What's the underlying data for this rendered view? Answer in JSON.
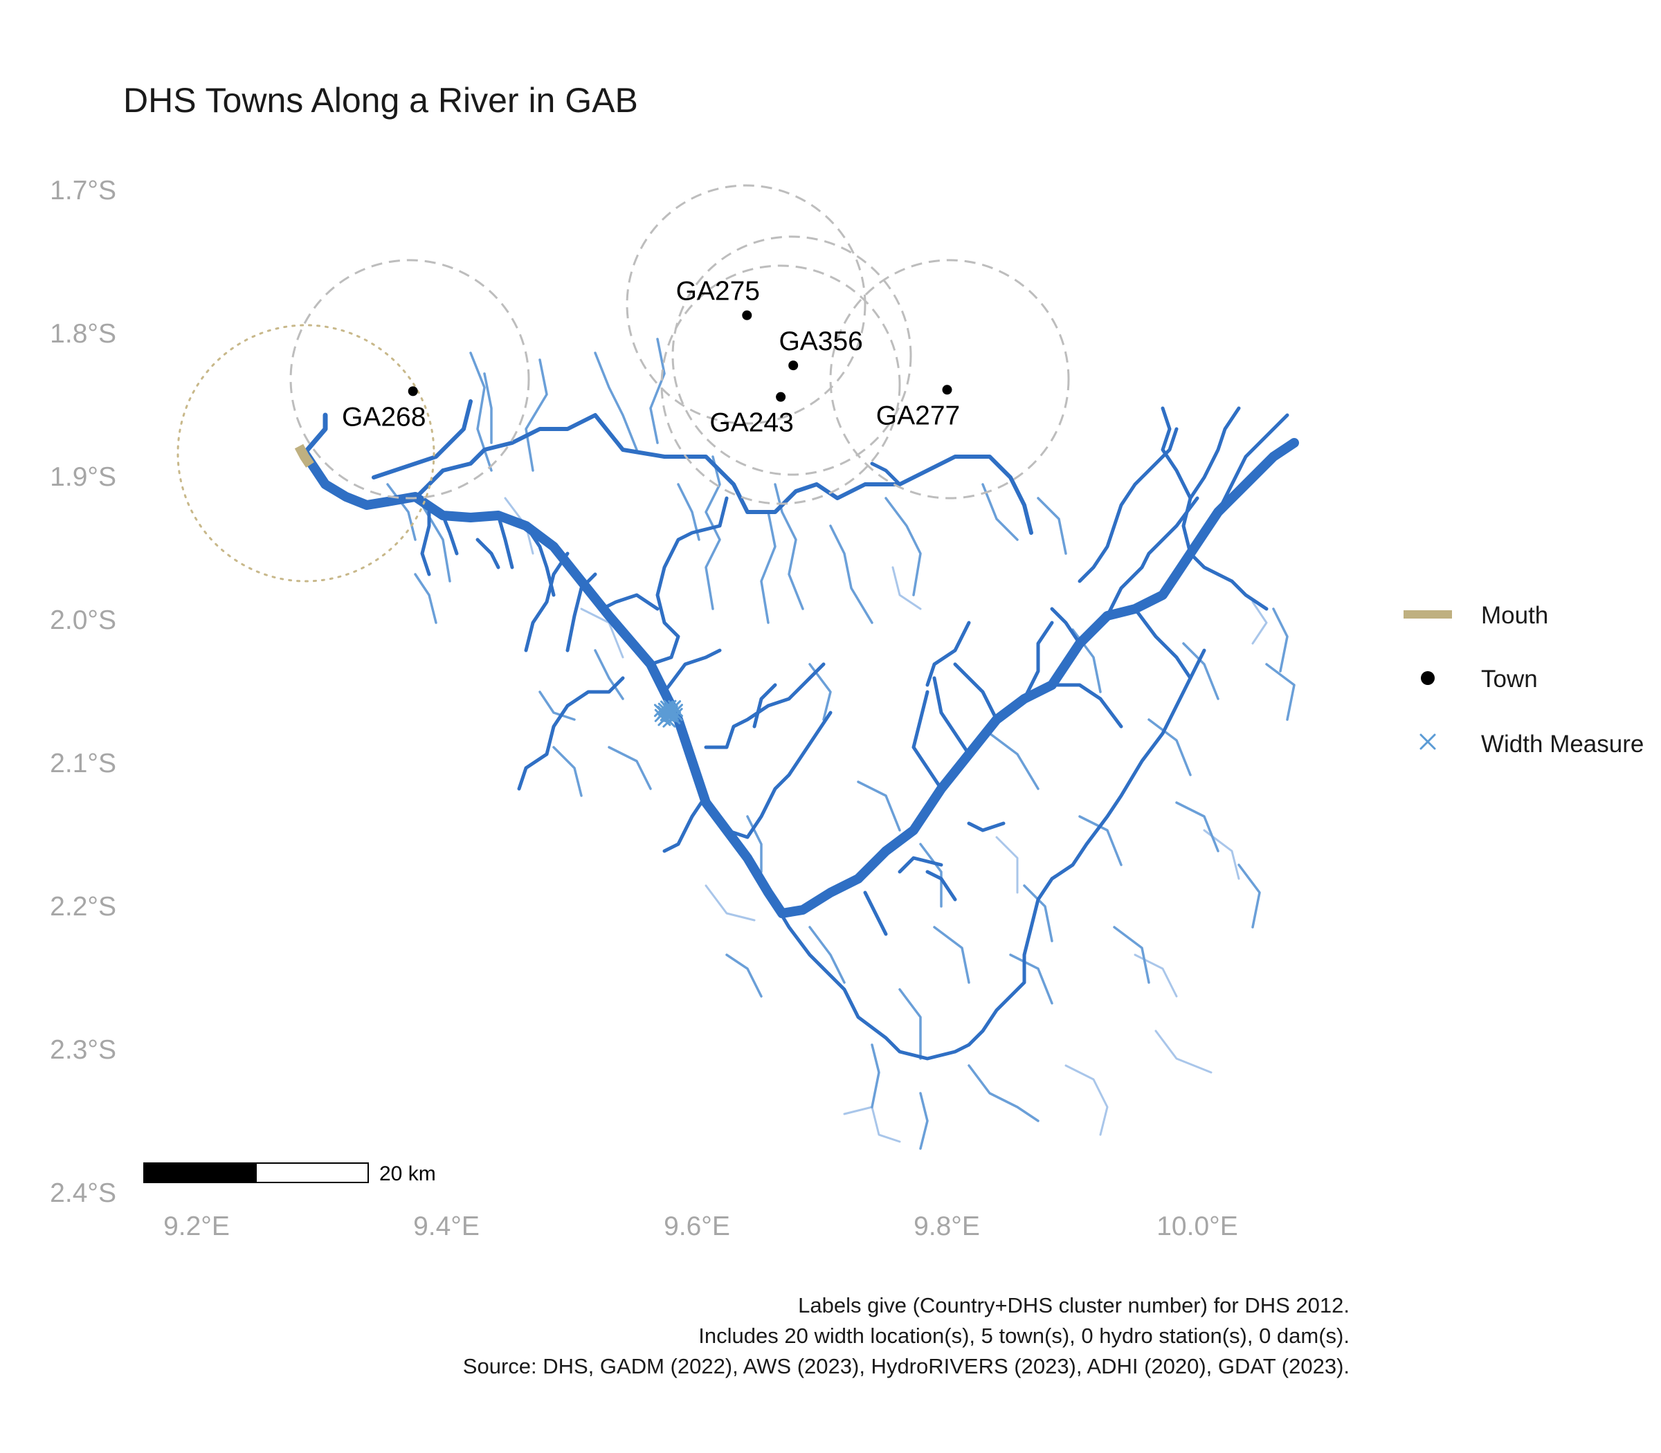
{
  "title": "DHS Towns Along a River in GAB",
  "axes": {
    "y_ticks": [
      "1.7°S",
      "1.8°S",
      "1.9°S",
      "2.0°S",
      "2.1°S",
      "2.2°S",
      "2.3°S",
      "2.4°S"
    ],
    "x_ticks": [
      "9.2°E",
      "9.4°E",
      "9.6°E",
      "9.8°E",
      "10.0°E"
    ],
    "lon_range": [
      9.15,
      10.08
    ],
    "lat_range": [
      -2.4,
      -1.7
    ]
  },
  "towns": [
    {
      "label": "GA268",
      "lon": 9.373,
      "lat": -1.834
    },
    {
      "label": "GA275",
      "lon": 9.64,
      "lat": -1.781
    },
    {
      "label": "GA356",
      "lon": 9.677,
      "lat": -1.816
    },
    {
      "label": "GA243",
      "lon": 9.667,
      "lat": -1.838
    },
    {
      "label": "GA277",
      "lon": 9.8,
      "lat": -1.833
    }
  ],
  "mouth": {
    "lon": 9.29,
    "lat": -1.885,
    "color": "#bfb080"
  },
  "width_measure": {
    "lon": 9.578,
    "lat": -2.058,
    "count": 20,
    "color": "#5b9bd5"
  },
  "legend": {
    "items": [
      {
        "label": "Mouth",
        "symbol": "line",
        "color": "#bfb080"
      },
      {
        "label": "Town",
        "symbol": "dot",
        "color": "#000000"
      },
      {
        "label": "Width Measure",
        "symbol": "cross",
        "color": "#5b9bd5"
      }
    ]
  },
  "scale_bar": {
    "label": "20 km"
  },
  "caption": {
    "line1": "Labels give (Country+DHS cluster number) for DHS 2012.",
    "line2": "Includes 20 width location(s), 5 town(s), 0 hydro station(s), 0 dam(s).",
    "line3": "Source: DHS, GADM (2022), AWS (2023), HydroRIVERS (2023), ADHI (2020), GDAT (2023)."
  },
  "colors": {
    "river_main": "#2f6fc4",
    "river_minor": "#6a9fd8",
    "river_faint": "#a9c6ea",
    "buffer_circle": "#bdbdbd",
    "mouth_circle": "#c8b88a"
  }
}
